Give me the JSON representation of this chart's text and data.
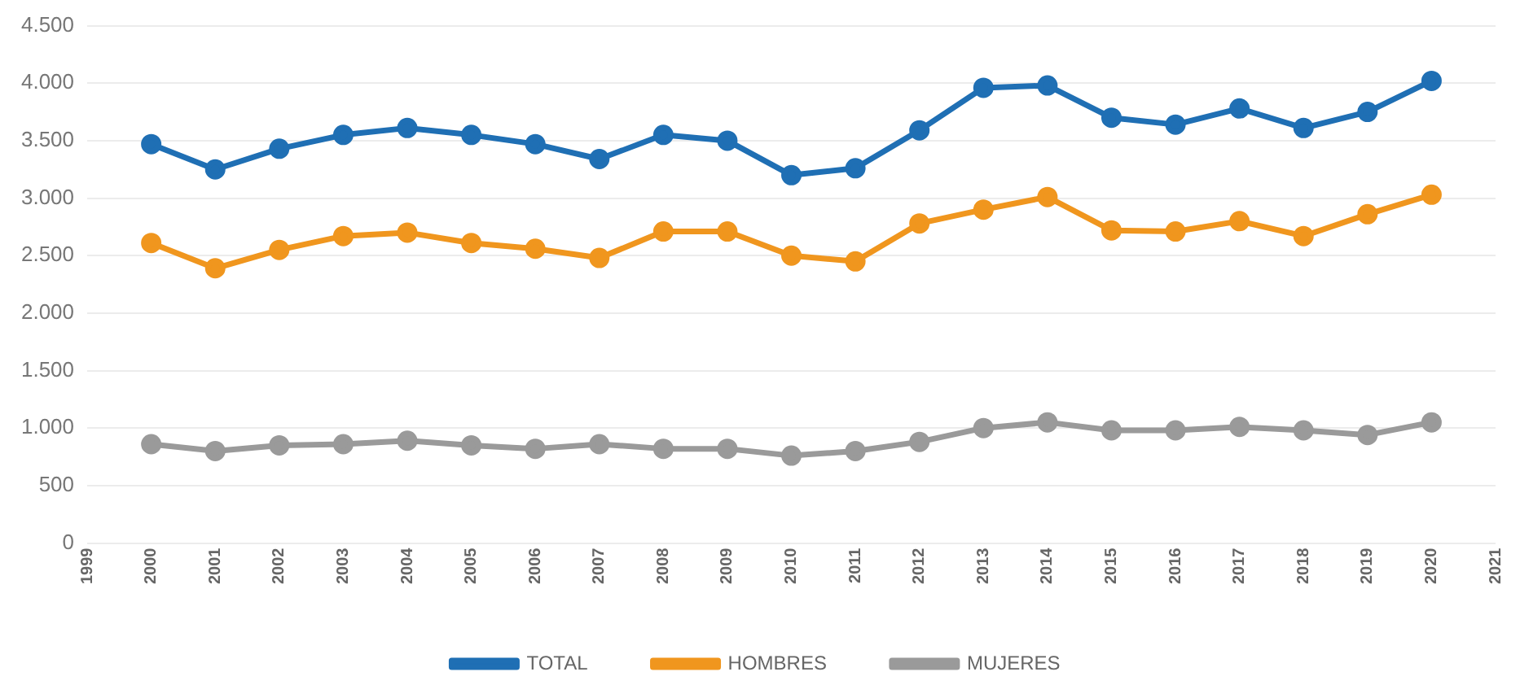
{
  "chart_data": {
    "type": "line",
    "x": [
      2000,
      2001,
      2002,
      2003,
      2004,
      2005,
      2006,
      2007,
      2008,
      2009,
      2010,
      2011,
      2012,
      2013,
      2014,
      2015,
      2016,
      2017,
      2018,
      2019,
      2020
    ],
    "series": [
      {
        "name": "TOTAL",
        "color": "#1f6fb4",
        "values": [
          3470,
          3250,
          3430,
          3550,
          3610,
          3550,
          3470,
          3340,
          3550,
          3500,
          3200,
          3260,
          3590,
          3960,
          3980,
          3700,
          3640,
          3780,
          3610,
          3750,
          4020
        ]
      },
      {
        "name": "HOMBRES",
        "color": "#f0961e",
        "values": [
          2610,
          2390,
          2550,
          2670,
          2700,
          2610,
          2560,
          2480,
          2710,
          2710,
          2500,
          2450,
          2780,
          2900,
          3010,
          2720,
          2710,
          2800,
          2670,
          2860,
          3030
        ]
      },
      {
        "name": "MUJERES",
        "color": "#9a9a9a",
        "values": [
          860,
          800,
          850,
          860,
          890,
          850,
          820,
          860,
          820,
          820,
          760,
          800,
          880,
          1000,
          1050,
          980,
          980,
          1010,
          980,
          940,
          1050
        ]
      }
    ],
    "xlim": [
      1999,
      2021
    ],
    "xticks": [
      1999,
      2000,
      2001,
      2002,
      2003,
      2004,
      2005,
      2006,
      2007,
      2008,
      2009,
      2010,
      2011,
      2012,
      2013,
      2014,
      2015,
      2016,
      2017,
      2018,
      2019,
      2020,
      2021
    ],
    "ylim": [
      0,
      4500
    ],
    "yticks": [
      0,
      {
        "value": 500,
        "label": "500"
      },
      {
        "value": 1000,
        "label": "1.000"
      },
      {
        "value": 1500,
        "label": "1.500"
      },
      {
        "value": 2000,
        "label": "2.000"
      },
      {
        "value": 2500,
        "label": "2.500"
      },
      {
        "value": 3000,
        "label": "3.000"
      },
      {
        "value": 3500,
        "label": "3.500"
      },
      {
        "value": 4000,
        "label": "4.000"
      },
      {
        "value": 4500,
        "label": "4.500"
      }
    ],
    "grid": "y",
    "legend": "bottom",
    "marker": "circle",
    "line_style": "solid"
  }
}
